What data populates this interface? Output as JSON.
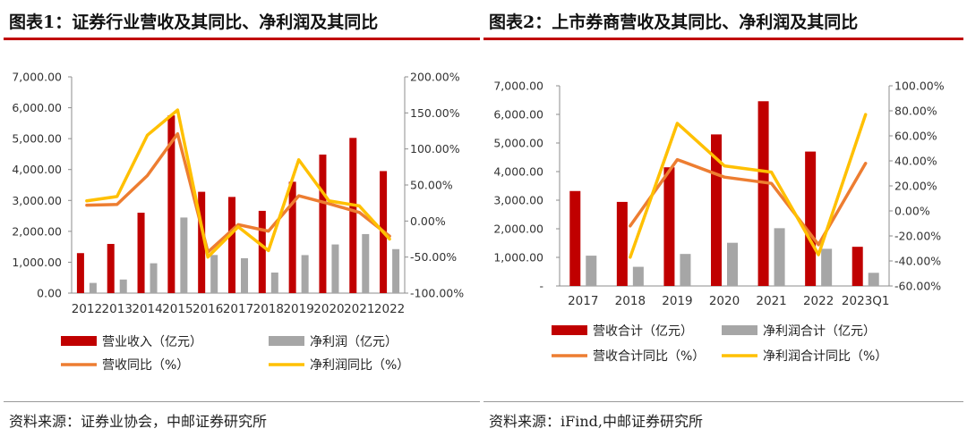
{
  "colors": {
    "revenue": "#c00000",
    "profit": "#a6a6a6",
    "revenue_yoy": "#ed7d31",
    "profit_yoy": "#ffc000",
    "accent": "#c00000"
  },
  "chart_data": [
    {
      "type": "bar",
      "title": "图表1：证券行业营收及其同比、净利润及其同比",
      "source": "资料来源：证券业协会，中邮证券研究所",
      "categories": [
        "2012",
        "2013",
        "2014",
        "2015",
        "2016",
        "2017",
        "2018",
        "2019",
        "2020",
        "2021",
        "2022"
      ],
      "y_ticks": [
        "0.00",
        "1,000.00",
        "2,000.00",
        "3,000.00",
        "4,000.00",
        "5,000.00",
        "6,000.00",
        "7,000.00"
      ],
      "y2_ticks": [
        "-100.00%",
        "-50.00%",
        "0.00%",
        "50.00%",
        "100.00%",
        "150.00%",
        "200.00%"
      ],
      "ylim": [
        0,
        7000
      ],
      "y2lim": [
        -100,
        200
      ],
      "series": [
        {
          "name": "营业收入（亿元）",
          "kind": "bar",
          "axis": "left",
          "values": [
            1295,
            1592,
            2603,
            5752,
            3280,
            3113,
            2663,
            3605,
            4485,
            5024,
            3950
          ]
        },
        {
          "name": "净利润（亿元）",
          "kind": "bar",
          "axis": "left",
          "values": [
            330,
            440,
            966,
            2447,
            1234,
            1130,
            666,
            1231,
            1575,
            1911,
            1424
          ]
        },
        {
          "name": "营收同比（%）",
          "kind": "line",
          "axis": "right",
          "values": [
            22,
            23,
            63,
            121,
            -43,
            -5,
            -14,
            35,
            24,
            12,
            -21
          ]
        },
        {
          "name": "净利润同比（%）",
          "kind": "line",
          "axis": "right",
          "values": [
            28,
            34,
            119,
            154,
            -50,
            -8,
            -41,
            85,
            28,
            21,
            -25
          ]
        }
      ],
      "legend": "bottom",
      "grid": false
    },
    {
      "type": "bar",
      "title": "图表2：上市券商营收及其同比、净利润及其同比",
      "source": "资料来源：iFind,中邮证券研究所",
      "categories": [
        "2017",
        "2018",
        "2019",
        "2020",
        "2021",
        "2022",
        "2023Q1"
      ],
      "y_ticks": [
        "-",
        "1,000.00",
        "2,000.00",
        "3,000.00",
        "4,000.00",
        "5,000.00",
        "6,000.00",
        "7,000.00"
      ],
      "y2_ticks": [
        "-60.00%",
        "-40.00%",
        "-20.00%",
        "0.00%",
        "20.00%",
        "40.00%",
        "60.00%",
        "80.00%",
        "100.00%"
      ],
      "ylim": [
        0,
        7000
      ],
      "y2lim": [
        -60,
        100
      ],
      "series": [
        {
          "name": "营收合计（亿元）",
          "kind": "bar",
          "axis": "left",
          "values": [
            3320,
            2940,
            4150,
            5300,
            6460,
            4700,
            1370
          ]
        },
        {
          "name": "净利润合计（亿元）",
          "kind": "bar",
          "axis": "left",
          "values": [
            1060,
            670,
            1120,
            1510,
            2020,
            1300,
            460
          ]
        },
        {
          "name": "营收合计同比（%）",
          "kind": "line",
          "axis": "right",
          "values": [
            null,
            -12,
            41,
            27,
            22,
            -27,
            38
          ]
        },
        {
          "name": "净利润合计同比（%）",
          "kind": "line",
          "axis": "right",
          "values": [
            null,
            -37,
            70,
            36,
            31,
            -35,
            77
          ]
        }
      ],
      "legend": "bottom",
      "grid": false
    }
  ]
}
